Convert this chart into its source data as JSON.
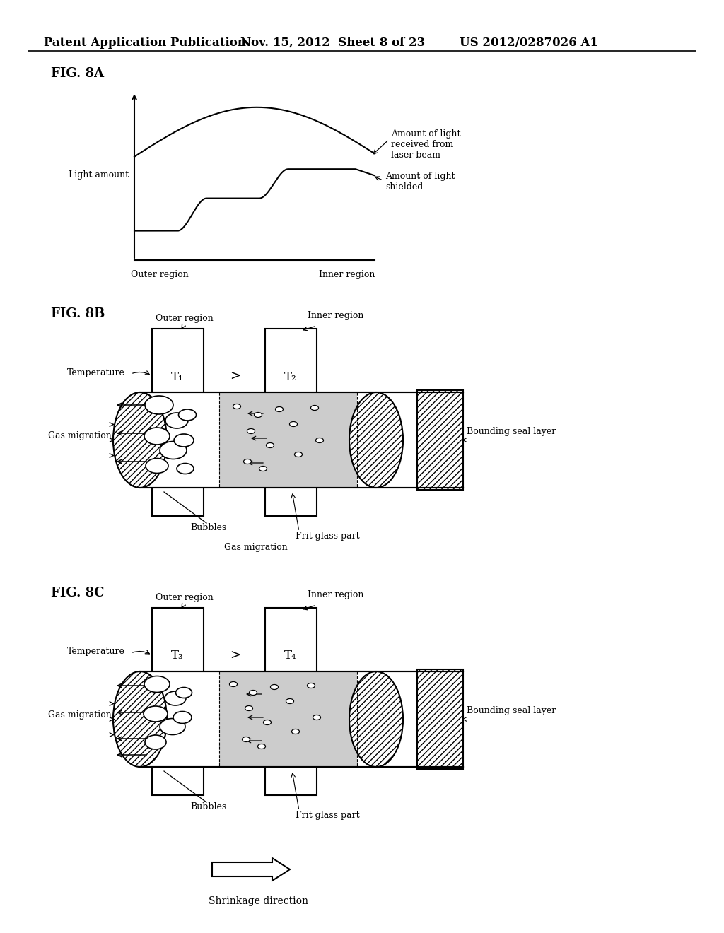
{
  "bg_color": "#ffffff",
  "header_left": "Patent Application Publication",
  "header_mid": "Nov. 15, 2012  Sheet 8 of 23",
  "header_right": "US 2012/0287026 A1",
  "fig8a_label": "FIG. 8A",
  "fig8b_label": "FIG. 8B",
  "fig8c_label": "FIG. 8C",
  "light_amount_label": "Light amount",
  "outer_region_label": "Outer region",
  "inner_region_label": "Inner region",
  "amount_laser_label": "Amount of light\nreceived from\nlaser beam",
  "amount_shielded_label": "Amount of light\nshielded",
  "temperature_label": "Temperature",
  "t1_label": "T₁",
  "t2_label": "T₂",
  "t3_label": "T₃",
  "t4_label": "T₄",
  "greater_label": ">",
  "gas_migration_label": "Gas migration",
  "bubbles_label": "Bubbles",
  "frit_glass_label": "Frit glass part",
  "bounding_seal_label": "Bounding seal layer",
  "shrinkage_label": "Shrinkage direction",
  "line_color": "#000000",
  "hatch_color": "#000000",
  "gray_fill": "#cccccc"
}
